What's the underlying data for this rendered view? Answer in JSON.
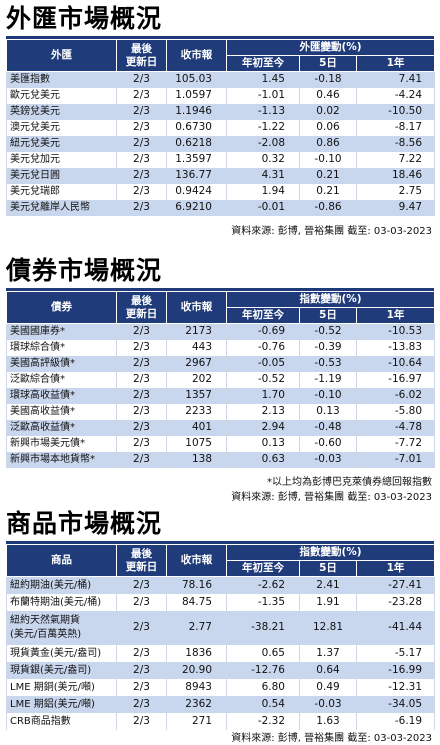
{
  "fx": {
    "title": "外匯市場概況",
    "headers": {
      "name": "外匯",
      "updated": "最後\n更新日",
      "quote": "收市報",
      "change_group": "外匯變動(%)",
      "ytd": "年初至今",
      "d5": "5日",
      "y1": "1年"
    },
    "rows": [
      {
        "name": "美匯指數",
        "date": "2/3",
        "quote": "105.03",
        "ytd": "1.45",
        "d5": "-0.18",
        "y1": "7.41"
      },
      {
        "name": "歐元兌美元",
        "date": "2/3",
        "quote": "1.0597",
        "ytd": "-1.01",
        "d5": "0.46",
        "y1": "-4.24"
      },
      {
        "name": "英鎊兌美元",
        "date": "2/3",
        "quote": "1.1946",
        "ytd": "-1.13",
        "d5": "0.02",
        "y1": "-10.50"
      },
      {
        "name": "澳元兌美元",
        "date": "2/3",
        "quote": "0.6730",
        "ytd": "-1.22",
        "d5": "0.06",
        "y1": "-8.17"
      },
      {
        "name": "紐元兌美元",
        "date": "2/3",
        "quote": "0.6218",
        "ytd": "-2.08",
        "d5": "0.86",
        "y1": "-8.56"
      },
      {
        "name": "美元兌加元",
        "date": "2/3",
        "quote": "1.3597",
        "ytd": "0.32",
        "d5": "-0.10",
        "y1": "7.22"
      },
      {
        "name": "美元兌日圓",
        "date": "2/3",
        "quote": "136.77",
        "ytd": "4.31",
        "d5": "0.21",
        "y1": "18.46"
      },
      {
        "name": "美元兌瑞郎",
        "date": "2/3",
        "quote": "0.9424",
        "ytd": "1.94",
        "d5": "0.21",
        "y1": "2.75"
      },
      {
        "name": "美元兌離岸人民幣",
        "date": "2/3",
        "quote": "6.9210",
        "ytd": "-0.01",
        "d5": "-0.86",
        "y1": "9.47"
      }
    ],
    "source": "資料來源: 彭博, 晉裕集團  截至: 03-03-2023"
  },
  "bond": {
    "title": "債券市場概況",
    "headers": {
      "name": "債券",
      "updated": "最後\n更新日",
      "quote": "收市報",
      "change_group": "指數變動(%)",
      "ytd": "年初至今",
      "d5": "5日",
      "y1": "1年"
    },
    "rows": [
      {
        "name": "美國國庫券*",
        "date": "2/3",
        "quote": "2173",
        "ytd": "-0.69",
        "d5": "-0.52",
        "y1": "-10.53"
      },
      {
        "name": "環球綜合債*",
        "date": "2/3",
        "quote": "443",
        "ytd": "-0.76",
        "d5": "-0.39",
        "y1": "-13.83"
      },
      {
        "name": "美國高評級債*",
        "date": "2/3",
        "quote": "2967",
        "ytd": "-0.05",
        "d5": "-0.53",
        "y1": "-10.64"
      },
      {
        "name": "泛歐綜合債*",
        "date": "2/3",
        "quote": "202",
        "ytd": "-0.52",
        "d5": "-1.19",
        "y1": "-16.97"
      },
      {
        "name": "環球高收益債*",
        "date": "2/3",
        "quote": "1357",
        "ytd": "1.70",
        "d5": "-0.10",
        "y1": "-6.02"
      },
      {
        "name": "美國高收益債*",
        "date": "2/3",
        "quote": "2233",
        "ytd": "2.13",
        "d5": "0.13",
        "y1": "-5.80"
      },
      {
        "name": "泛歐高收益債*",
        "date": "2/3",
        "quote": "401",
        "ytd": "2.94",
        "d5": "-0.48",
        "y1": "-4.78"
      },
      {
        "name": "新興市場美元債*",
        "date": "2/3",
        "quote": "1075",
        "ytd": "0.13",
        "d5": "-0.60",
        "y1": "-7.72"
      },
      {
        "name": "新興市場本地貨幣*",
        "date": "2/3",
        "quote": "138",
        "ytd": "0.63",
        "d5": "-0.03",
        "y1": "-7.01"
      }
    ],
    "footnote": "*以上均為彭博巴克萊債券總回報指數",
    "source": "資料來源: 彭博, 晉裕集團  截至: 03-03-2023"
  },
  "commodity": {
    "title": "商品市場概況",
    "headers": {
      "name": "商品",
      "updated": "最後\n更新日",
      "quote": "收市報",
      "change_group": "指數變動(%)",
      "ytd": "年初至今",
      "d5": "5日",
      "y1": "1年"
    },
    "rows": [
      {
        "name": "紐約期油(美元/桶)",
        "date": "2/3",
        "quote": "78.16",
        "ytd": "-2.62",
        "d5": "2.41",
        "y1": "-27.41"
      },
      {
        "name": "布蘭特期油(美元/桶)",
        "date": "2/3",
        "quote": "84.75",
        "ytd": "-1.35",
        "d5": "1.91",
        "y1": "-23.28"
      },
      {
        "name": "紐約天然氣期貨\n(美元/百萬英熱)",
        "date": "2/3",
        "quote": "2.77",
        "ytd": "-38.21",
        "d5": "12.81",
        "y1": "-41.44"
      },
      {
        "name": "現貨黃金(美元/盎司)",
        "date": "2/3",
        "quote": "1836",
        "ytd": "0.65",
        "d5": "1.37",
        "y1": "-5.17"
      },
      {
        "name": "現貨銀(美元/盎司)",
        "date": "2/3",
        "quote": "20.90",
        "ytd": "-12.76",
        "d5": "0.64",
        "y1": "-16.99"
      },
      {
        "name": "LME 期銅(美元/噸)",
        "date": "2/3",
        "quote": "8943",
        "ytd": "6.80",
        "d5": "0.49",
        "y1": "-12.31"
      },
      {
        "name": "LME 期鋁(美元/噸)",
        "date": "2/3",
        "quote": "2362",
        "ytd": "0.54",
        "d5": "-0.03",
        "y1": "-34.05"
      },
      {
        "name": "CRB商品指數",
        "date": "2/3",
        "quote": "271",
        "ytd": "-2.32",
        "d5": "1.63",
        "y1": "-6.19"
      }
    ],
    "source": "資料來源: 彭博, 晉裕集團  截至: 03-03-2023"
  },
  "colors": {
    "header_bg": "#1f3b7a",
    "band_bg": "#c9d7ee",
    "rule": "#1e3a78"
  }
}
